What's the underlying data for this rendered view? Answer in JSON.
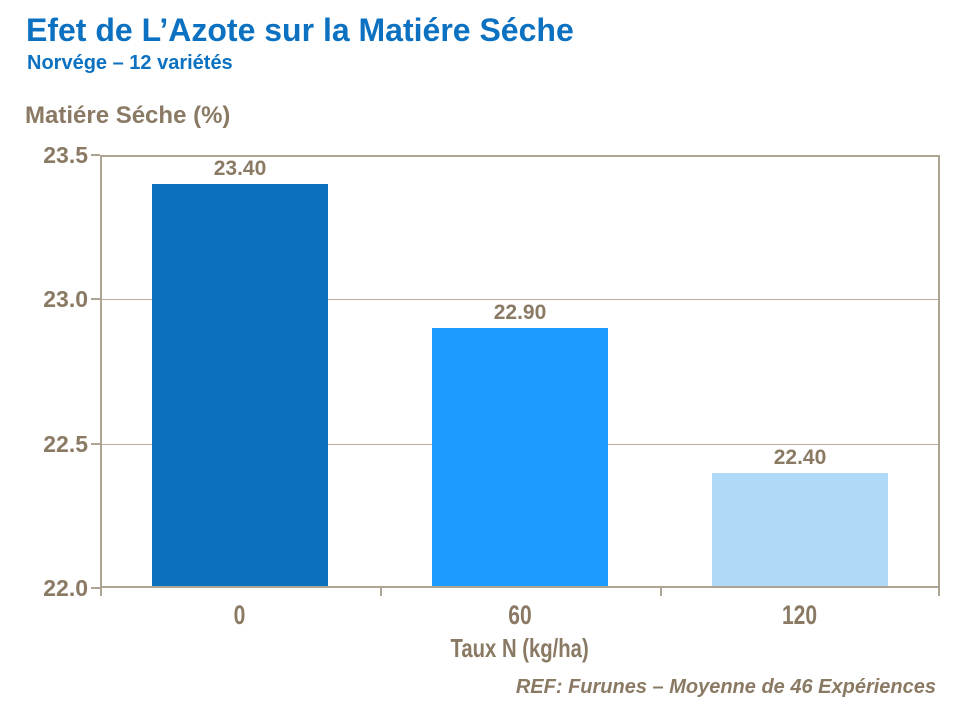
{
  "header": {
    "title": "Efet de L’Azote sur la Matiére Séche",
    "subtitle": "Norvége – 12 variétés"
  },
  "chart_data": {
    "type": "bar",
    "title": "Efet de L’Azote sur la Matiére Séche",
    "subtitle": "Norvége – 12 variétés",
    "categories": [
      "0",
      "60",
      "120"
    ],
    "values": [
      23.4,
      22.9,
      22.4
    ],
    "value_labels": [
      "23.40",
      "22.90",
      "22.40"
    ],
    "xlabel": "Taux N (kg/ha)",
    "ylabel": "Matiére Séche (%)",
    "ylim": [
      22.0,
      23.5
    ],
    "yticks": [
      23.5,
      23.0,
      22.5,
      22.0
    ],
    "ytick_labels": [
      "23.5",
      "23.0",
      "22.5",
      "22.0"
    ],
    "grid": true,
    "legend": false,
    "bar_colors": [
      "#0b70be",
      "#1e9bfe",
      "#b0d9f8"
    ]
  },
  "footer": {
    "ref": "REF: Furunes – Moyenne de 46 Expériences"
  },
  "colors": {
    "title_blue": "#0c71c0",
    "text_brown": "#8a7a64",
    "frame": "#aea494",
    "gridline": "#b7ad9f"
  }
}
